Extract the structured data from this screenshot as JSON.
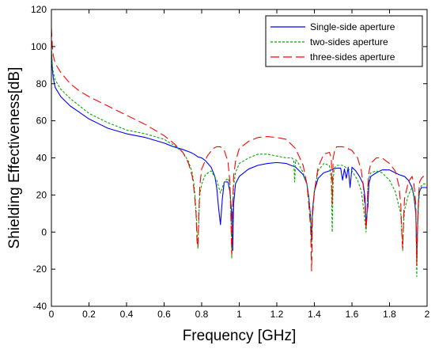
{
  "chart_data": {
    "type": "line",
    "title": "",
    "xlabel": "Frequency [GHz]",
    "ylabel": "Shielding Effectiveness[dB]",
    "xlim": [
      0,
      2
    ],
    "ylim": [
      -40,
      120
    ],
    "xticks": [
      0,
      0.2,
      0.4,
      0.6,
      0.8,
      1,
      1.2,
      1.4,
      1.6,
      1.8,
      2
    ],
    "xtick_labels": [
      "0",
      "0.2",
      "0.4",
      "0.6",
      "0.8",
      "1",
      "1.2",
      "1.4",
      "1.6",
      "1.8",
      "2"
    ],
    "yticks": [
      -40,
      -20,
      0,
      20,
      40,
      60,
      80,
      100,
      120
    ],
    "ytick_labels": [
      "-40",
      "-20",
      "0",
      "20",
      "40",
      "60",
      "80",
      "100",
      "120"
    ],
    "grid": false,
    "legend_position": "top-right",
    "series": [
      {
        "name": "Single-side aperture",
        "color": "#0000ff",
        "dash": "solid",
        "x": [
          0,
          0.005,
          0.01,
          0.02,
          0.05,
          0.1,
          0.15,
          0.2,
          0.3,
          0.4,
          0.5,
          0.6,
          0.65,
          0.7,
          0.74,
          0.76,
          0.78,
          0.8,
          0.82,
          0.85,
          0.87,
          0.88,
          0.89,
          0.9,
          0.91,
          0.92,
          0.94,
          0.95,
          0.96,
          0.965,
          0.97,
          0.98,
          1.0,
          1.05,
          1.1,
          1.15,
          1.2,
          1.25,
          1.3,
          1.34,
          1.36,
          1.37,
          1.38,
          1.385,
          1.39,
          1.4,
          1.42,
          1.45,
          1.48,
          1.5,
          1.52,
          1.54,
          1.55,
          1.56,
          1.57,
          1.58,
          1.59,
          1.6,
          1.61,
          1.62,
          1.64,
          1.66,
          1.67,
          1.675,
          1.68,
          1.685,
          1.69,
          1.7,
          1.73,
          1.76,
          1.8,
          1.85,
          1.88,
          1.9,
          1.92,
          1.93,
          1.94,
          1.945,
          1.95,
          1.955,
          1.96,
          1.97,
          1.98,
          2.0
        ],
        "y": [
          97,
          88,
          83,
          78,
          73,
          68,
          64.5,
          61,
          56,
          53,
          51,
          48,
          46,
          44.5,
          43,
          42,
          40.5,
          40,
          38.5,
          35,
          30,
          24,
          13,
          4,
          18,
          27,
          27,
          22,
          10,
          -10,
          15,
          26,
          30,
          34,
          36,
          37,
          37.5,
          37,
          35,
          31,
          26,
          19,
          8,
          -5,
          12,
          22,
          29,
          32,
          33,
          34,
          34.5,
          34.5,
          28,
          34,
          29,
          35,
          24,
          35,
          34,
          33,
          30,
          26,
          18,
          3,
          10,
          14,
          26,
          30,
          32,
          33.5,
          33.5,
          31,
          30,
          28,
          24,
          19,
          10,
          -15,
          5,
          18,
          22,
          24,
          24,
          24
        ]
      },
      {
        "name": "two-sides aperture",
        "color": "#00aa00",
        "dash": "dotted",
        "x": [
          0,
          0.005,
          0.01,
          0.02,
          0.05,
          0.1,
          0.15,
          0.2,
          0.3,
          0.4,
          0.5,
          0.6,
          0.65,
          0.7,
          0.73,
          0.75,
          0.76,
          0.77,
          0.775,
          0.78,
          0.785,
          0.79,
          0.8,
          0.82,
          0.85,
          0.88,
          0.9,
          0.92,
          0.94,
          0.95,
          0.955,
          0.96,
          0.965,
          0.97,
          0.98,
          1.0,
          1.05,
          1.1,
          1.15,
          1.2,
          1.25,
          1.28,
          1.29,
          1.295,
          1.3,
          1.31,
          1.34,
          1.36,
          1.37,
          1.38,
          1.385,
          1.39,
          1.4,
          1.42,
          1.45,
          1.48,
          1.49,
          1.495,
          1.5,
          1.505,
          1.51,
          1.52,
          1.55,
          1.58,
          1.6,
          1.63,
          1.65,
          1.66,
          1.67,
          1.675,
          1.68,
          1.685,
          1.69,
          1.7,
          1.73,
          1.76,
          1.8,
          1.83,
          1.85,
          1.86,
          1.865,
          1.87,
          1.875,
          1.88,
          1.9,
          1.92,
          1.93,
          1.94,
          1.945,
          1.95,
          1.955,
          1.96,
          1.97,
          1.98,
          2.0
        ],
        "y": [
          100,
          90,
          86,
          82,
          77,
          72,
          68,
          64,
          59,
          55,
          53,
          50,
          47,
          43,
          38,
          32,
          25,
          12,
          0,
          -9,
          8,
          20,
          26,
          31,
          33,
          28,
          21,
          27,
          29,
          26,
          15,
          -14,
          12,
          25,
          32,
          37,
          40,
          42,
          42,
          41,
          40,
          40,
          39,
          27,
          39,
          38,
          32,
          26,
          18,
          8,
          -8,
          10,
          22,
          33,
          37,
          36,
          28,
          0,
          28,
          34,
          35,
          36,
          36,
          34,
          33,
          28,
          22,
          14,
          5,
          0,
          8,
          25,
          29,
          32,
          33,
          32,
          28,
          22,
          14,
          10,
          0,
          -10,
          5,
          12,
          20,
          24,
          20,
          12,
          -24,
          5,
          15,
          22,
          25,
          26,
          26
        ]
      },
      {
        "name": "three-sides aperture",
        "color": "#ff0000",
        "dash": "dashed",
        "x": [
          0,
          0.005,
          0.01,
          0.02,
          0.05,
          0.1,
          0.15,
          0.2,
          0.3,
          0.4,
          0.5,
          0.6,
          0.65,
          0.7,
          0.73,
          0.75,
          0.76,
          0.77,
          0.775,
          0.78,
          0.785,
          0.79,
          0.8,
          0.83,
          0.86,
          0.88,
          0.9,
          0.92,
          0.94,
          0.95,
          0.955,
          0.96,
          0.965,
          0.97,
          0.98,
          1.0,
          1.05,
          1.1,
          1.15,
          1.2,
          1.25,
          1.3,
          1.34,
          1.36,
          1.37,
          1.38,
          1.385,
          1.39,
          1.4,
          1.42,
          1.45,
          1.48,
          1.49,
          1.495,
          1.5,
          1.51,
          1.52,
          1.55,
          1.58,
          1.6,
          1.63,
          1.65,
          1.66,
          1.67,
          1.675,
          1.68,
          1.685,
          1.69,
          1.7,
          1.73,
          1.76,
          1.8,
          1.83,
          1.85,
          1.86,
          1.865,
          1.87,
          1.875,
          1.88,
          1.9,
          1.92,
          1.93,
          1.94,
          1.945,
          1.95,
          1.955,
          1.96,
          1.97,
          1.98,
          2.0
        ],
        "y": [
          110,
          100,
          95,
          91,
          86,
          80,
          76,
          73,
          68,
          63,
          58,
          52,
          48,
          43,
          37,
          30,
          22,
          10,
          -5,
          -8,
          10,
          25,
          34,
          41,
          45,
          46,
          46,
          44,
          38,
          27,
          10,
          -12,
          15,
          30,
          38,
          45,
          49,
          51,
          51.5,
          51,
          50,
          45,
          36,
          26,
          15,
          2,
          -21,
          8,
          22,
          35,
          42,
          43,
          40,
          15,
          40,
          45,
          46,
          46,
          45,
          44,
          40,
          33,
          25,
          12,
          2,
          8,
          25,
          32,
          37,
          40,
          40,
          37,
          33,
          25,
          15,
          0,
          -9,
          8,
          18,
          27,
          30,
          26,
          15,
          -18,
          5,
          20,
          27,
          29,
          30,
          30
        ]
      }
    ]
  }
}
